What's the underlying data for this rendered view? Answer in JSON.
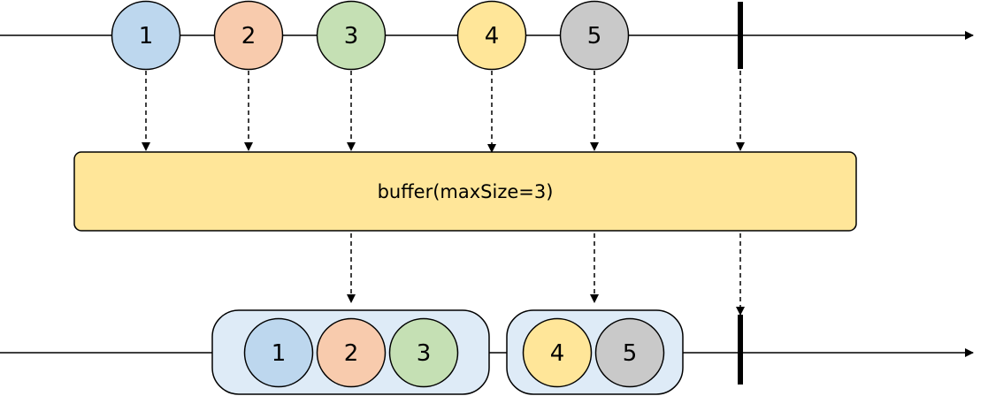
{
  "operator": {
    "label": "buffer(maxSize=3)",
    "fill": "#FFE699"
  },
  "input_marbles": [
    {
      "label": "1",
      "color": "#BDD7EE"
    },
    {
      "label": "2",
      "color": "#F8CBAD"
    },
    {
      "label": "3",
      "color": "#C5E0B4"
    },
    {
      "label": "4",
      "color": "#FFE699"
    },
    {
      "label": "5",
      "color": "#C9C9C9"
    }
  ],
  "output_groups": [
    {
      "marbles": [
        {
          "label": "1",
          "color": "#BDD7EE"
        },
        {
          "label": "2",
          "color": "#F8CBAD"
        },
        {
          "label": "3",
          "color": "#C5E0B4"
        }
      ]
    },
    {
      "marbles": [
        {
          "label": "4",
          "color": "#FFE699"
        },
        {
          "label": "5",
          "color": "#C9C9C9"
        }
      ]
    }
  ],
  "group_fill": "#DEEBF7",
  "stroke_color": "#000000"
}
